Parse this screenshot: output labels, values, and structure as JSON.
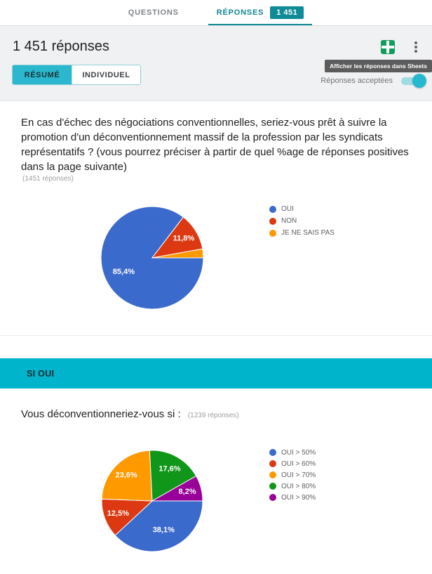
{
  "tabbar": {
    "questions_label": "QUESTIONS",
    "reponses_label": "RÉPONSES",
    "reponses_badge": "1 451"
  },
  "header": {
    "title": "1 451 réponses",
    "resume_label": "RÉSUMÉ",
    "individuel_label": "INDIVIDUEL",
    "sheets_tooltip": "Afficher les réponses dans Sheets",
    "accepting_label": "Réponses acceptées",
    "accepting_toggle_on": true,
    "icons": [
      "create-spreadsheet-icon",
      "kebab-menu-icon"
    ]
  },
  "colors": {
    "teal_dark": "#0e8795",
    "badge_bg": "#0f8b98",
    "cyan_banner": "#00b4cb",
    "cyan_button": "#2bb8ce",
    "toggle_knob": "#26b9ce",
    "sheets_green": "#0f9d58",
    "header_bg": "#f0f1f2"
  },
  "question1": {
    "text": "En cas d'échec des négociations conventionnelles, seriez-vous prêt à suivre la promotion d'un déconventionnement massif de la profession par les syndicats représentatifs ? (vous pourrez préciser à partir de quel %age de réponses positives dans la page suivante)",
    "count": "(1451 réponses)"
  },
  "section_banner": {
    "label": "SI OUI"
  },
  "question2": {
    "text": "Vous déconventionneriez-vous si :",
    "count": "(1239 réponses)"
  },
  "chart_data": [
    {
      "type": "pie",
      "title": "En cas d'échec des négociations conventionnelles, seriez-vous prêt à suivre la promotion d'un déconventionnement massif de la profession par les syndicats représentatifs ?",
      "responses_label": "(1451 réponses)",
      "categories": [
        "OUI",
        "NON",
        "JE NE SAIS PAS"
      ],
      "values": [
        85.4,
        11.8,
        2.8
      ],
      "value_labels": [
        "85,4%",
        "11,8%",
        ""
      ],
      "colors": [
        "#3b6acd",
        "#dc3912",
        "#ff9900"
      ],
      "legend_position": "right",
      "start": "east",
      "direction": "clockwise"
    },
    {
      "type": "pie",
      "title": "Vous déconventionneriez-vous si :",
      "responses_label": "(1239 réponses)",
      "categories": [
        "OUI > 50%",
        "OUI > 60%",
        "OUI > 70%",
        "OUI > 80%",
        "OUI > 90%"
      ],
      "values": [
        38.1,
        12.5,
        23.6,
        17.6,
        8.2
      ],
      "value_labels": [
        "38,1%",
        "12,5%",
        "23,6%",
        "17,6%",
        "8,2%"
      ],
      "colors": [
        "#3b6acd",
        "#dc3912",
        "#ff9900",
        "#109618",
        "#990099"
      ],
      "legend_position": "right",
      "start": "east",
      "direction": "clockwise"
    }
  ]
}
